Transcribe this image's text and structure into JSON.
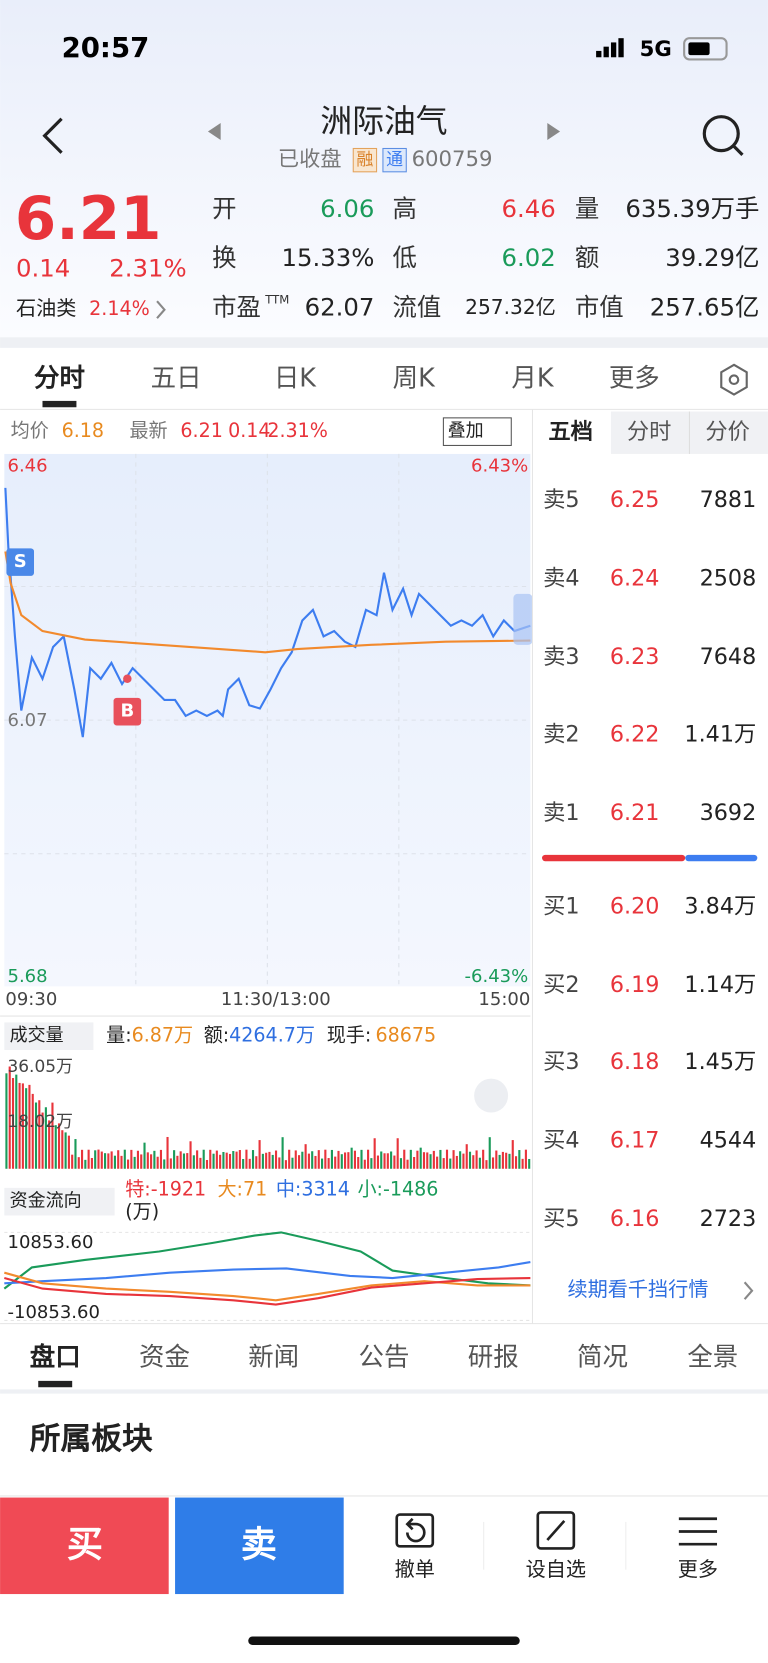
{
  "status": {
    "time": "20:57",
    "network": "5G"
  },
  "header": {
    "title": "洲际油气",
    "state": "已收盘",
    "badges": [
      "融",
      "通"
    ],
    "code": "600759"
  },
  "quote": {
    "price": "6.21",
    "change": "0.14",
    "percent": "2.31%",
    "sector": "石油类",
    "sector_percent": "2.14%",
    "stats": [
      {
        "label": "开",
        "value": "6.06"
      },
      {
        "label": "高",
        "value": "6.46"
      },
      {
        "label": "量",
        "value": "635.39万手"
      },
      {
        "label": "换",
        "value": "15.33%"
      },
      {
        "label": "低",
        "value": "6.02"
      },
      {
        "label": "额",
        "value": "39.29亿"
      },
      {
        "label": "市盈",
        "sup": "TTM",
        "value": "62.07"
      },
      {
        "label": "流值",
        "value": "257.32亿"
      },
      {
        "label": "市值",
        "value": "257.65亿"
      }
    ]
  },
  "tabs": [
    "分时",
    "五日",
    "日K",
    "周K",
    "月K",
    "更多"
  ],
  "chart": {
    "avg_label": "均价",
    "avg": "6.18",
    "latest_label": "最新",
    "latest": "6.21",
    "change": "0.14",
    "percent": "2.31%",
    "overlay": "叠加",
    "price_top": "6.46",
    "price_mid": "6.07",
    "price_bottom": "5.68",
    "pct_top": "6.43%",
    "pct_bottom": "-6.43%",
    "times": [
      "09:30",
      "11:30/13:00",
      "15:00"
    ],
    "markers": [
      "S",
      "B"
    ]
  },
  "volume": {
    "label": "成交量",
    "vol_label": "量:",
    "vol": "6.87万",
    "amt_label": "额:",
    "amt": "4264.7万",
    "hand_label": "现手:",
    "hand": "68675",
    "y_top": "36.05万",
    "y_mid": "18.02万"
  },
  "flow": {
    "label": "资金流向",
    "items": [
      "特:-1921",
      "大:71",
      "中:3314",
      "小:-1486"
    ],
    "unit": "(万)",
    "y_top": "10853.60",
    "y_bottom": "-10853.60"
  },
  "orderbook": {
    "tabs": [
      "五档",
      "分时",
      "分价"
    ],
    "sells": [
      [
        "卖5",
        "6.25",
        "7881"
      ],
      [
        "卖4",
        "6.24",
        "2508"
      ],
      [
        "卖3",
        "6.23",
        "7648"
      ],
      [
        "卖2",
        "6.22",
        "1.41万"
      ],
      [
        "卖1",
        "6.21",
        "3692"
      ]
    ],
    "buys": [
      [
        "买1",
        "6.20",
        "3.84万"
      ],
      [
        "买2",
        "6.19",
        "1.14万"
      ],
      [
        "买3",
        "6.18",
        "1.45万"
      ],
      [
        "买4",
        "6.17",
        "4544"
      ],
      [
        "买5",
        "6.16",
        "2723"
      ]
    ],
    "link": "续期看千挡行情"
  },
  "bottom_tabs": [
    "盘口",
    "资金",
    "新闻",
    "公告",
    "研报",
    "简况",
    "全景"
  ],
  "section": "所属板块",
  "actions": {
    "buy": "买",
    "sell": "卖",
    "cancel": "撤单",
    "watch": "设自选",
    "more": "更多"
  }
}
